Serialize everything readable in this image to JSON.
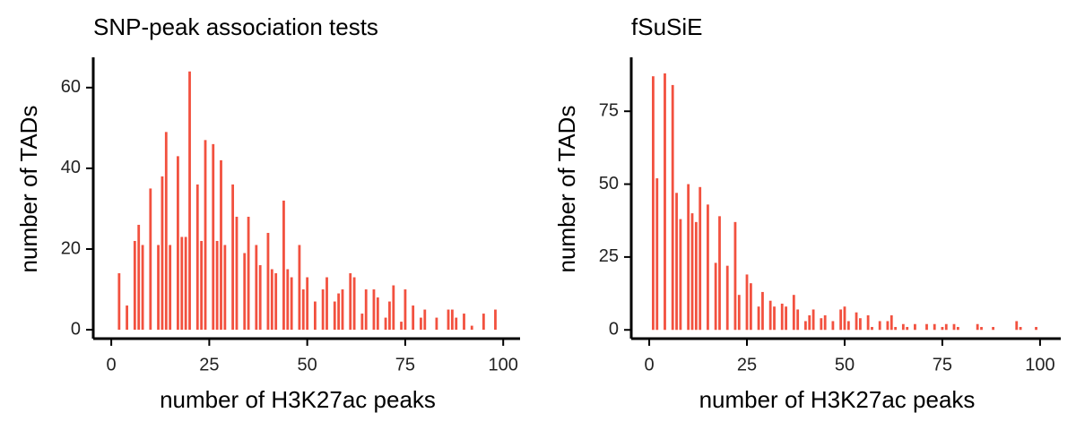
{
  "chart_data": [
    {
      "type": "bar",
      "title": "SNP-peak association tests",
      "xlabel": "number of H3K27ac peaks",
      "ylabel": "number of TADs",
      "color": "#f2513f",
      "x": [
        2,
        4,
        6,
        7,
        8,
        10,
        12,
        13,
        14,
        15,
        17,
        18,
        19,
        20,
        22,
        23,
        24,
        26,
        27,
        28,
        29,
        31,
        32,
        34,
        35,
        37,
        38,
        40,
        41,
        42,
        44,
        45,
        46,
        48,
        49,
        50,
        52,
        54,
        55,
        57,
        58,
        59,
        61,
        62,
        64,
        65,
        67,
        68,
        70,
        71,
        72,
        74,
        75,
        77,
        79,
        80,
        83,
        86,
        87,
        88,
        90,
        92,
        95,
        98
      ],
      "values": [
        14,
        6,
        22,
        26,
        21,
        35,
        21,
        38,
        49,
        21,
        43,
        23,
        23,
        64,
        36,
        22,
        47,
        46,
        22,
        42,
        21,
        36,
        28,
        19,
        28,
        21,
        16,
        24,
        15,
        14,
        32,
        15,
        13,
        21,
        10,
        13,
        7,
        10,
        13,
        7,
        9,
        10,
        14,
        13,
        4,
        10,
        10,
        8,
        3,
        7,
        11,
        2,
        10,
        6,
        3,
        5,
        3,
        5,
        5,
        3,
        4,
        1,
        4,
        5
      ],
      "xlim": [
        -4.6,
        104.3
      ],
      "xticks": [
        0,
        25,
        50,
        75,
        100
      ],
      "ylim": [
        -2.2,
        67.5
      ],
      "yticks": [
        0,
        20,
        40,
        60
      ]
    },
    {
      "type": "bar",
      "title": "fSuSiE",
      "xlabel": "number of H3K27ac peaks",
      "ylabel": "number of TADs",
      "color": "#f2513f",
      "x": [
        1,
        2,
        4,
        6,
        7,
        8,
        10,
        11,
        12,
        13,
        15,
        17,
        18,
        20,
        22,
        23,
        25,
        26,
        28,
        29,
        31,
        32,
        34,
        35,
        37,
        38,
        40,
        41,
        42,
        44,
        45,
        47,
        49,
        50,
        51,
        53,
        54,
        56,
        57,
        59,
        61,
        62,
        63,
        65,
        66,
        68,
        71,
        73,
        75,
        76,
        78,
        79,
        84,
        85,
        88,
        94,
        95,
        99
      ],
      "values": [
        87,
        52,
        88,
        84,
        47,
        38,
        50,
        40,
        37,
        49,
        43,
        23,
        39,
        22,
        37,
        12,
        19,
        16,
        8,
        13,
        10,
        8,
        9,
        8,
        12,
        7,
        3,
        5,
        7,
        4,
        5,
        3,
        7,
        8,
        3,
        6,
        4,
        5,
        1,
        3,
        3,
        5,
        1,
        2,
        1,
        2,
        2,
        2,
        1,
        2,
        2,
        1,
        2,
        1,
        1,
        3,
        1,
        1
      ],
      "xlim": [
        -4.6,
        105.3
      ],
      "xticks": [
        0,
        25,
        50,
        75,
        100
      ],
      "ylim": [
        -3,
        93.5
      ],
      "yticks": [
        0,
        25,
        50,
        75
      ]
    }
  ]
}
